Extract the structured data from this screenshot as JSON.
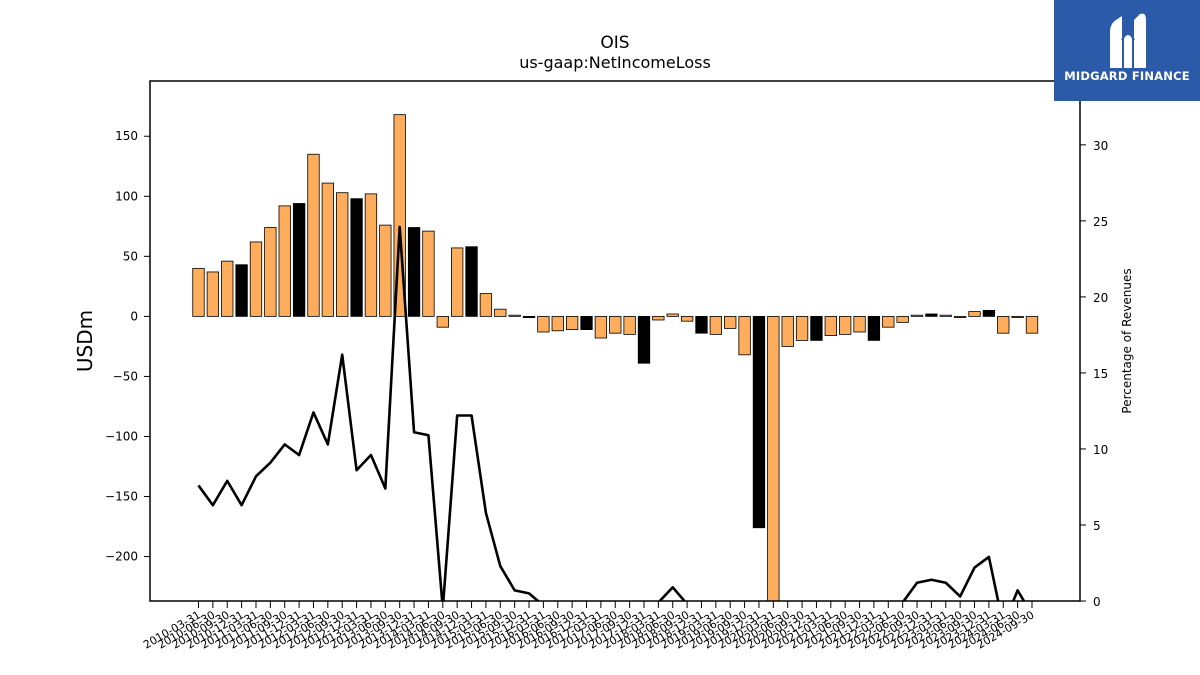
{
  "chart_data": {
    "type": "bar",
    "title": "OIS",
    "subtitle": "us-gaap:NetIncomeLoss",
    "ylabel": "USDm",
    "y2label": "Percentage of Revenues",
    "ylim": [
      -237,
      196
    ],
    "y2lim": [
      0,
      34.2
    ],
    "yticks": [
      -200,
      -150,
      -100,
      -50,
      0,
      50,
      100,
      150
    ],
    "y2ticks": [
      0,
      5,
      10,
      15,
      20,
      25,
      30
    ],
    "colors": {
      "bar": "#fdad5c",
      "bar_q4": "#000000",
      "line": "#000000"
    },
    "x": [
      "2010-03-31",
      "2010-06-30",
      "2010-09-30",
      "2010-12-31",
      "2011-03-31",
      "2011-06-30",
      "2011-09-30",
      "2011-12-31",
      "2012-03-31",
      "2012-06-30",
      "2012-09-30",
      "2012-12-31",
      "2013-03-31",
      "2013-06-30",
      "2013-09-30",
      "2013-12-31",
      "2014-03-31",
      "2014-06-30",
      "2014-09-30",
      "2014-12-31",
      "2015-03-31",
      "2015-06-30",
      "2015-09-30",
      "2015-12-31",
      "2016-03-31",
      "2016-06-30",
      "2016-09-30",
      "2016-12-31",
      "2017-03-31",
      "2017-06-30",
      "2017-09-30",
      "2017-12-31",
      "2018-03-31",
      "2018-06-30",
      "2018-09-30",
      "2018-12-31",
      "2019-03-31",
      "2019-06-30",
      "2019-09-30",
      "2019-12-31",
      "2020-03-31",
      "2020-06-30",
      "2020-09-30",
      "2020-12-31",
      "2021-03-31",
      "2021-06-30",
      "2021-09-30",
      "2021-12-31",
      "2022-03-31",
      "2022-06-30",
      "2022-09-30",
      "2022-12-31",
      "2023-03-31",
      "2023-06-30",
      "2023-09-30",
      "2023-12-31",
      "2024-03-31",
      "2024-06-30",
      "2024-09-30"
    ],
    "series": [
      {
        "type": "bar",
        "values": [
          40,
          37,
          46,
          43,
          62,
          74,
          92,
          94,
          135,
          111,
          103,
          98,
          102,
          76,
          168,
          74,
          71,
          -9,
          57,
          58,
          19,
          6,
          1,
          -1,
          -13,
          -12,
          -11,
          -11,
          -18,
          -14,
          -15,
          -39,
          -3,
          2,
          -4,
          -14,
          -15,
          -10,
          -32,
          -176,
          -237,
          -25,
          -20,
          -20,
          -16,
          -15,
          -13,
          -20,
          -9,
          -5,
          1,
          2,
          1,
          -1,
          4,
          5,
          -14,
          -1,
          -14
        ]
      },
      {
        "type": "line",
        "axis": "right",
        "values": [
          7.6,
          6.3,
          7.9,
          6.3,
          8.2,
          9.1,
          10.3,
          9.6,
          12.4,
          10.3,
          16.2,
          8.6,
          9.6,
          7.4,
          24.6,
          11.1,
          10.9,
          -0.5,
          12.2,
          12.2,
          5.8,
          2.3,
          0.7,
          0.5,
          -0.3,
          -0.5,
          -0.5,
          -0.5,
          -0.6,
          -0.5,
          -0.5,
          -1.0,
          -0.1,
          0.9,
          -0.2,
          -0.6,
          -0.6,
          -0.4,
          -1.1,
          -4.5,
          -6.0,
          -0.7,
          -0.6,
          -0.6,
          -0.5,
          -0.4,
          -0.4,
          -0.6,
          -0.3,
          -0.1,
          1.2,
          1.4,
          1.2,
          0.3,
          2.2,
          2.9,
          -1.6,
          0.7,
          -0.9
        ]
      }
    ]
  },
  "logo": {
    "text": "MIDGARD FINANCE",
    "icon": "midgard-m-logo-icon"
  }
}
